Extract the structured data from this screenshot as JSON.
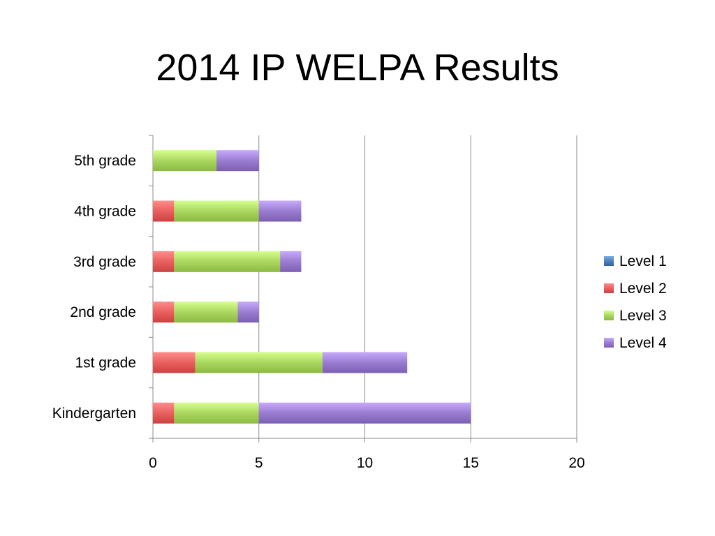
{
  "title": "2014 IP WELPA Results",
  "colors": {
    "Level 1": "#4f81bd",
    "Level 2": "#e9605f",
    "Level 3": "#a9d760",
    "Level 4": "#9a7dd0"
  },
  "chart_data": {
    "type": "bar",
    "orientation": "horizontal",
    "stacked": true,
    "title": "2014 IP WELPA Results",
    "categories": [
      "5th grade",
      "4th grade",
      "3rd grade",
      "2nd grade",
      "1st grade",
      "Kindergarten"
    ],
    "series": [
      {
        "name": "Level 1",
        "values": [
          0,
          0,
          0,
          0,
          0,
          0
        ]
      },
      {
        "name": "Level 2",
        "values": [
          0,
          1,
          1,
          1,
          2,
          1
        ]
      },
      {
        "name": "Level 3",
        "values": [
          3,
          4,
          5,
          3,
          6,
          4
        ]
      },
      {
        "name": "Level 4",
        "values": [
          2,
          2,
          1,
          1,
          4,
          10
        ]
      }
    ],
    "xlim": [
      0,
      20
    ],
    "xticks": [
      "0",
      "5",
      "10",
      "15",
      "20"
    ],
    "xlabel": "",
    "ylabel": "",
    "grid": "vertical",
    "legend": "right"
  }
}
